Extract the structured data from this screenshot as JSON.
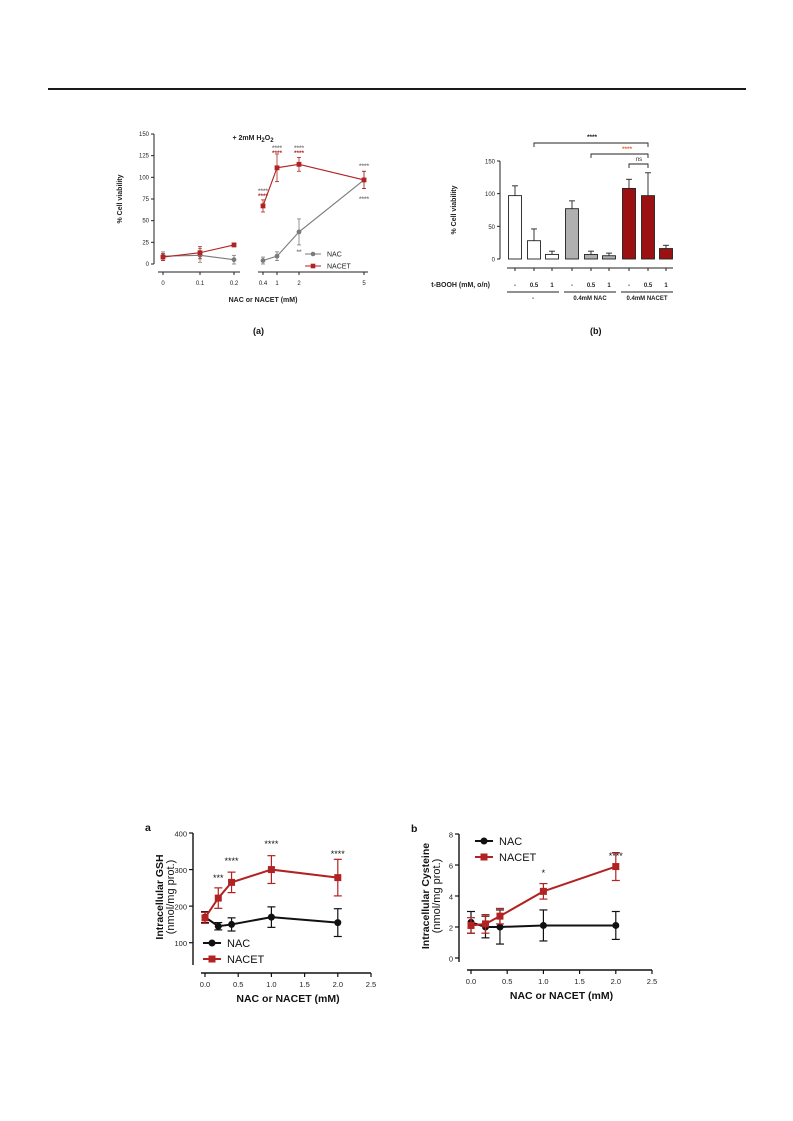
{
  "colors": {
    "nac": "#7a7a7a",
    "nacet": "#b22222",
    "nac_bottom": "#111111",
    "nacet_bottom": "#b22222",
    "bar_white": "#ffffff",
    "bar_grey": "#b0b0b0",
    "bar_red": "#9b1010"
  },
  "chart_data": [
    {
      "id": "a",
      "type": "line",
      "title": "+ 2mM H2O2",
      "xlabel": "NAC or NACET (mM)",
      "ylabel": "% Cell viability",
      "ylim": [
        0,
        150
      ],
      "y_ticks": [
        "0",
        "25",
        "50",
        "75",
        "100",
        "125",
        "150"
      ],
      "x_ticks": [
        "0",
        "0.1",
        "0.2",
        "0.4",
        "1",
        "2",
        "5"
      ],
      "x_axis": "broken",
      "legend_position": "right",
      "caption": "(a)",
      "series": [
        {
          "name": "NAC",
          "x": [
            0,
            0.1,
            0.2,
            0.4,
            1,
            2,
            5
          ],
          "y": [
            9,
            10,
            5,
            4,
            9,
            37,
            97
          ],
          "err": [
            5,
            8,
            5,
            4,
            5,
            15,
            10
          ]
        },
        {
          "name": "NACET",
          "x": [
            0,
            0.1,
            0.2,
            0.4,
            1,
            2,
            5
          ],
          "y": [
            8,
            13,
            22,
            67,
            111,
            115,
            97
          ],
          "err": [
            4,
            7,
            2,
            7,
            16,
            8,
            10
          ]
        }
      ],
      "annotations": [
        {
          "x": 0.4,
          "text": "****",
          "color": "nac"
        },
        {
          "x": 0.4,
          "text": "****",
          "color": "nacet"
        },
        {
          "x": 1,
          "text": "****",
          "color": "nac"
        },
        {
          "x": 1,
          "text": "****",
          "color": "nacet"
        },
        {
          "x": 2,
          "text": "****",
          "color": "nac"
        },
        {
          "x": 2,
          "text": "****",
          "color": "nacet"
        },
        {
          "x": 2,
          "text": "**",
          "color": "nac"
        },
        {
          "x": 5,
          "text": "****",
          "color": "nac"
        },
        {
          "x": 5,
          "text": "****",
          "color": "nac"
        }
      ]
    },
    {
      "id": "b",
      "type": "bar",
      "ylabel": "% Cell viability",
      "ylim": [
        0,
        150
      ],
      "y_ticks": [
        "0",
        "50",
        "100",
        "150"
      ],
      "row_label": "t-BOOH (mM, o/n)",
      "categories": [
        "-",
        "0.5",
        "1",
        "-",
        "0.5",
        "1",
        "-",
        "0.5",
        "1"
      ],
      "groups": [
        "-",
        "0.4mM NAC",
        "0.4mM NACET"
      ],
      "values": [
        97,
        28,
        7,
        77,
        7,
        5,
        108,
        97,
        16
      ],
      "errors": [
        15,
        18,
        5,
        12,
        5,
        4,
        14,
        35,
        5
      ],
      "caption": "(b)",
      "brackets": [
        {
          "text": "****",
          "color": "#111111"
        },
        {
          "text": "****",
          "color": "#e8622a"
        },
        {
          "text": "ns",
          "color": "#111111"
        }
      ]
    },
    {
      "id": "c",
      "panel_letter": "a",
      "type": "line",
      "xlabel": "NAC or NACET (mM)",
      "ylabel": "Intracellular GSH",
      "ylabel_unit": "(nmol/mg prot.)",
      "xlim": [
        0,
        2.5
      ],
      "ylim": [
        50,
        400
      ],
      "y_ticks": [
        "100",
        "200",
        "300",
        "400"
      ],
      "x_ticks": [
        "0.0",
        "0.5",
        "1.0",
        "1.5",
        "2.0",
        "2.5"
      ],
      "legend_position": "bottom-left",
      "series": [
        {
          "name": "NAC",
          "x": [
            0,
            0.2,
            0.4,
            1.0,
            2.0
          ],
          "y": [
            170,
            145,
            150,
            170,
            155
          ],
          "err": [
            15,
            10,
            18,
            28,
            38
          ]
        },
        {
          "name": "NACET",
          "x": [
            0,
            0.2,
            0.4,
            1.0,
            2.0
          ],
          "y": [
            168,
            222,
            265,
            300,
            278
          ],
          "err": [
            15,
            28,
            28,
            38,
            50
          ]
        }
      ],
      "annotations": [
        {
          "x": 0.2,
          "text": "***"
        },
        {
          "x": 0.4,
          "text": "****"
        },
        {
          "x": 1.0,
          "text": "****"
        },
        {
          "x": 2.0,
          "text": "****"
        }
      ]
    },
    {
      "id": "d",
      "panel_letter": "b",
      "type": "line",
      "xlabel": "NAC or NACET (mM)",
      "ylabel": "Intracellular Cysteine",
      "ylabel_unit": "(nmol/mg prot.)",
      "xlim": [
        0,
        2.5
      ],
      "ylim": [
        0,
        8
      ],
      "y_ticks": [
        "0",
        "2",
        "4",
        "6",
        "8"
      ],
      "x_ticks": [
        "0.0",
        "0.5",
        "1.0",
        "1.5",
        "2.0",
        "2.5"
      ],
      "legend_position": "top-left",
      "series": [
        {
          "name": "NAC",
          "x": [
            0,
            0.2,
            0.4,
            1.0,
            2.0
          ],
          "y": [
            2.3,
            2.0,
            2.0,
            2.1,
            2.1
          ],
          "err": [
            0.7,
            0.7,
            1.1,
            1.0,
            0.9
          ]
        },
        {
          "name": "NACET",
          "x": [
            0,
            0.2,
            0.4,
            1.0,
            2.0
          ],
          "y": [
            2.1,
            2.2,
            2.7,
            4.3,
            5.9
          ],
          "err": [
            0.5,
            0.6,
            0.5,
            0.5,
            0.9
          ]
        }
      ],
      "annotations": [
        {
          "x": 1.0,
          "text": "*"
        },
        {
          "x": 2.0,
          "text": "****"
        }
      ]
    }
  ]
}
